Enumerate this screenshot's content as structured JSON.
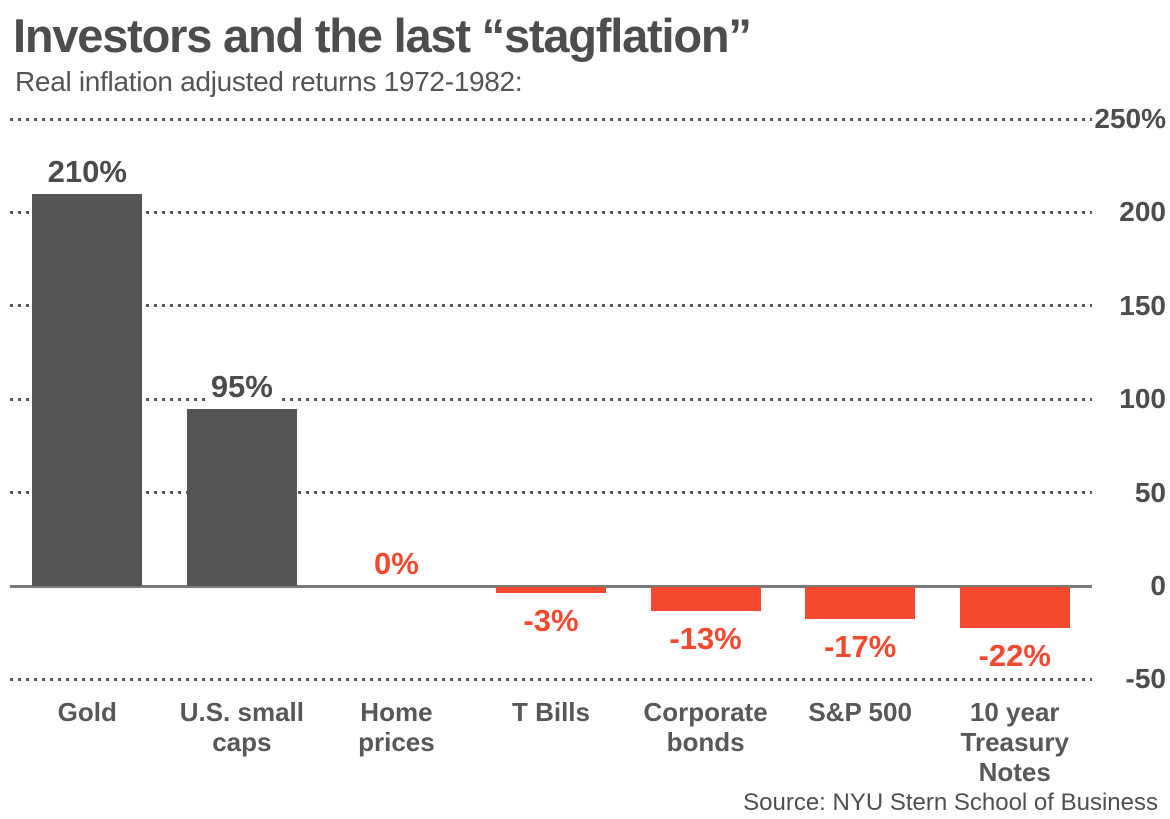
{
  "header": {
    "title": "Investors and the last “stagflation”",
    "subtitle": "Real inflation adjusted returns 1972-1982:"
  },
  "footer": {
    "source": "Source: NYU Stern School of Business"
  },
  "chart_data": {
    "type": "bar",
    "title": "Investors and the last “stagflation”",
    "subtitle": "Real inflation adjusted returns 1972-1982:",
    "categories": [
      "Gold",
      "U.S. small\ncaps",
      "Home\nprices",
      "T Bills",
      "Corporate\nbonds",
      "S&P 500",
      "10 year\nTreasury\nNotes"
    ],
    "values": [
      210,
      95,
      0,
      -3,
      -13,
      -17,
      -22
    ],
    "value_labels": [
      "210%",
      "95%",
      "0%",
      "-3%",
      "-13%",
      "-17%",
      "-22%"
    ],
    "xlabel": "",
    "ylabel": "",
    "ylim": [
      -50,
      250
    ],
    "yticks": [
      250,
      200,
      150,
      100,
      50,
      0,
      -50
    ],
    "ytick_labels": [
      "250%",
      "200",
      "150",
      "100",
      "50",
      "0",
      "-50"
    ],
    "grid": "horizontal-dotted",
    "legend": "none",
    "colors": {
      "positive_bar": "#555557",
      "negative_bar": "#f5492f",
      "positive_label": "#4b4b4d",
      "negative_label": "#f5492f",
      "gridline": "#585858",
      "zero_line": "#7a7a7a",
      "axis_text": "#4d4d4d",
      "category_text": "#58585a"
    }
  }
}
